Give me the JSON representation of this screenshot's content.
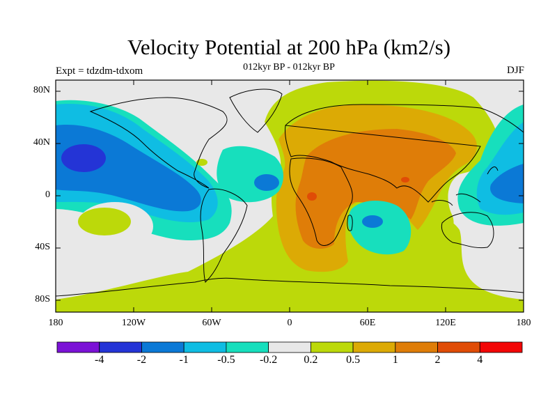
{
  "header": {
    "title": "Velocity Potential at 200 hPa (km2/s)",
    "subtitle": "012kyr BP - 012kyr BP",
    "left_string": "Expt = tdzdm-tdxom",
    "right_string": "DJF"
  },
  "axes": {
    "lat_ticks": [
      "80N",
      "40N",
      "0",
      "40S",
      "80S"
    ],
    "lon_ticks": [
      "180",
      "120W",
      "60W",
      "0",
      "60E",
      "120E",
      "180"
    ]
  },
  "colorbar": {
    "colors": [
      "#7b12d6",
      "#2434d6",
      "#0b79d6",
      "#0fbde3",
      "#17dfbd",
      "#e8e8e8",
      "#bcd90a",
      "#dcaa05",
      "#df7d08",
      "#e04c06",
      "#f20606"
    ],
    "labels": [
      "-4",
      "-2",
      "-1",
      "-0.5",
      "-0.2",
      "0.2",
      "0.5",
      "1",
      "2",
      "4"
    ]
  },
  "map": {
    "land_color": "#e8e8e8",
    "coastline_color": "#000000",
    "field": "Velocity potential anomaly at 200 hPa, DJF: positive (orange/red) over Africa, Middle East and South/Southeast Asia, negative (blue) over the Pacific and the tropical Atlantic"
  }
}
